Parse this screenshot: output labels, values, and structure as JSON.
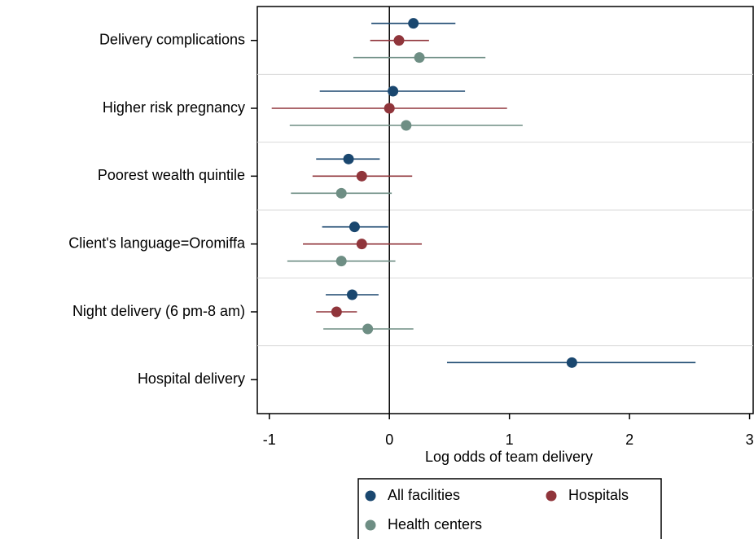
{
  "chart_data": {
    "type": "coefplot",
    "x_label": "Log odds of team delivery",
    "categories": [
      "Delivery complications",
      "Higher risk pregnancy",
      "Poorest wealth quintile",
      "Client's language=Oromiffa",
      "Night delivery (6 pm-8 am)",
      "Hospital delivery"
    ],
    "series": [
      {
        "name": "All facilities",
        "color": "#1a476f",
        "values": [
          0.2,
          0.03,
          -0.34,
          -0.29,
          -0.31,
          1.52
        ],
        "lower": [
          -0.15,
          -0.58,
          -0.61,
          -0.56,
          -0.53,
          0.48
        ],
        "upper": [
          0.55,
          0.63,
          -0.08,
          -0.01,
          -0.09,
          2.55
        ]
      },
      {
        "name": "Hospitals",
        "color": "#90353b",
        "values": [
          0.08,
          0.0,
          -0.23,
          -0.23,
          -0.44,
          null
        ],
        "lower": [
          -0.16,
          -0.98,
          -0.64,
          -0.72,
          -0.61,
          null
        ],
        "upper": [
          0.33,
          0.98,
          0.19,
          0.27,
          -0.27,
          null
        ]
      },
      {
        "name": "Health centers",
        "color": "#6e8e84",
        "values": [
          0.25,
          0.14,
          -0.4,
          -0.4,
          -0.18,
          null
        ],
        "lower": [
          -0.3,
          -0.83,
          -0.82,
          -0.85,
          -0.55,
          null
        ],
        "upper": [
          0.8,
          1.11,
          0.02,
          0.05,
          0.2,
          null
        ]
      }
    ],
    "xlim": [
      -1.1,
      3.03
    ],
    "xticks": [
      -1,
      0,
      1,
      2,
      3
    ],
    "reference_line": 0
  }
}
